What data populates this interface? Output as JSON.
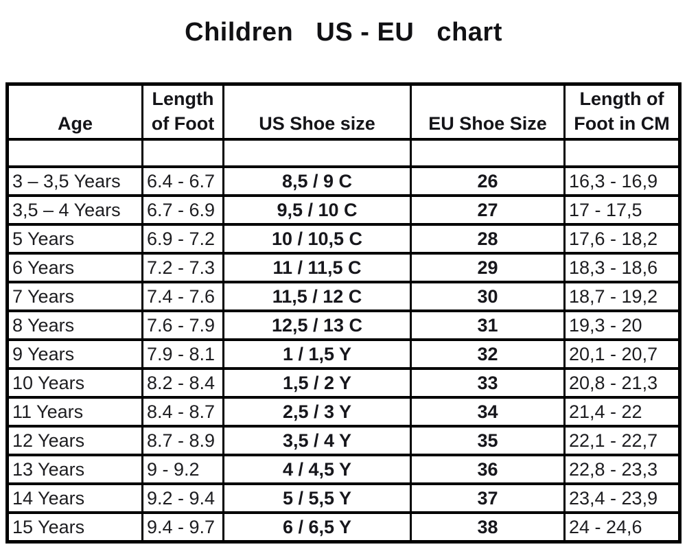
{
  "title": "Children   US - EU   chart",
  "chart_data": {
    "type": "table",
    "title": "Children   US - EU   chart",
    "columns": [
      "Age",
      "Length of Foot",
      "US Shoe size",
      "EU Shoe Size",
      "Length of Foot in CM"
    ],
    "rows": [
      [
        "3 – 3,5 Years",
        "6.4 - 6.7",
        "8,5 / 9 C",
        "26",
        "16,3 - 16,9"
      ],
      [
        "3,5 – 4 Years",
        "6.7 - 6.9",
        "9,5 / 10 C",
        "27",
        "17 - 17,5"
      ],
      [
        "5 Years",
        "6.9 - 7.2",
        "10 / 10,5 C",
        "28",
        "17,6 - 18,2"
      ],
      [
        "6 Years",
        "7.2 - 7.3",
        "11 / 11,5 C",
        "29",
        "18,3 - 18,6"
      ],
      [
        "7 Years",
        "7.4 - 7.6",
        "11,5 / 12 C",
        "30",
        "18,7 - 19,2"
      ],
      [
        "8 Years",
        "7.6 - 7.9",
        "12,5 / 13 C",
        "31",
        "19,3 - 20"
      ],
      [
        "9 Years",
        "7.9 - 8.1",
        "1 / 1,5 Y",
        "32",
        "20,1 - 20,7"
      ],
      [
        "10 Years",
        "8.2 - 8.4",
        "1,5 / 2 Y",
        "33",
        "20,8 - 21,3"
      ],
      [
        "11 Years",
        "8.4 - 8.7",
        "2,5 / 3 Y",
        "34",
        "21,4 - 22"
      ],
      [
        "12 Years",
        "8.7 - 8.9",
        "3,5 / 4 Y",
        "35",
        "22,1 - 22,7"
      ],
      [
        "13 Years",
        "9 - 9.2",
        "4 / 4,5 Y",
        "36",
        "22,8 - 23,3"
      ],
      [
        "14 Years",
        "9.2 - 9.4",
        "5 / 5,5 Y",
        "37",
        "23,4 - 23,9"
      ],
      [
        "15 Years",
        "9.4 - 9.7",
        "6 / 6,5 Y",
        "38",
        "24 - 24,6"
      ]
    ],
    "text_color": "#1d1d20",
    "border_color": "#000000",
    "background_color": "#ffffff"
  }
}
